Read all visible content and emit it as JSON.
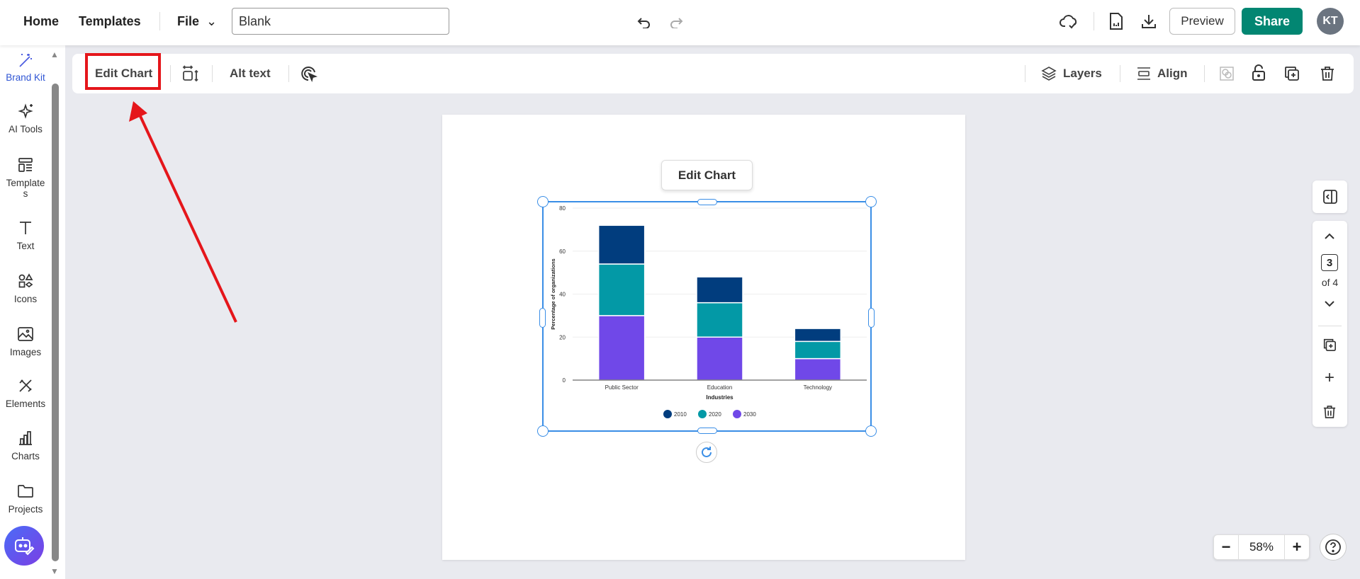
{
  "topbar": {
    "home": "Home",
    "templates": "Templates",
    "file": "File",
    "title_value": "Blank",
    "preview": "Preview",
    "share": "Share",
    "avatar": "KT"
  },
  "sidebar": {
    "items": [
      {
        "label": "Brand Kit",
        "icon": "magic-wand-icon"
      },
      {
        "label": "AI Tools",
        "icon": "sparkles-icon"
      },
      {
        "label": "Templates",
        "icon": "layout-icon"
      },
      {
        "label": "Text",
        "icon": "text-icon"
      },
      {
        "label": "Icons",
        "icon": "shapes-icon"
      },
      {
        "label": "Images",
        "icon": "image-icon"
      },
      {
        "label": "Elements",
        "icon": "elements-icon"
      },
      {
        "label": "Charts",
        "icon": "bar-chart-icon"
      },
      {
        "label": "Projects",
        "icon": "folder-icon"
      }
    ]
  },
  "toolbar": {
    "edit_chart": "Edit Chart",
    "alt_text": "Alt text",
    "layers": "Layers",
    "align": "Align"
  },
  "canvas": {
    "floating_edit": "Edit Chart"
  },
  "pager": {
    "current": "3",
    "total": "of 4"
  },
  "zoom": {
    "value": "58",
    "unit": "%"
  },
  "colors": {
    "accent": "#028672",
    "selection": "#3a8ee6",
    "annotation": "#e5161b"
  },
  "chart_data": {
    "type": "bar",
    "stacked": true,
    "categories": [
      "Public Sector",
      "Education",
      "Technology"
    ],
    "series": [
      {
        "name": "2030",
        "color": "#7048e8",
        "values": [
          30,
          20,
          10
        ]
      },
      {
        "name": "2020",
        "color": "#0399a6",
        "values": [
          24,
          16,
          8
        ]
      },
      {
        "name": "2010",
        "color": "#013d7e",
        "values": [
          18,
          12,
          6
        ]
      }
    ],
    "legend_order": [
      "2010",
      "2020",
      "2030"
    ],
    "xlabel": "Industries",
    "ylabel": "Percentage of organizations",
    "ylim": [
      0,
      80
    ],
    "yticks": [
      "0",
      "20",
      "40",
      "60",
      "80"
    ],
    "grid": true,
    "legend": "bottom"
  }
}
